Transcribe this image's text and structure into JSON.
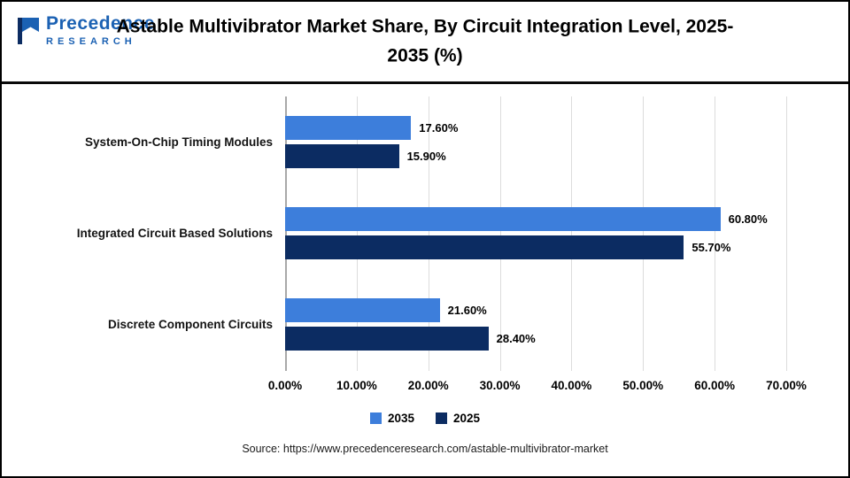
{
  "header": {
    "title": "Astable Multivibrator Market Share, By Circuit Integration Level, 2025-2035 (%)",
    "logo": {
      "line1": "Precedence",
      "line2": "RESEARCH"
    }
  },
  "chart_data": {
    "type": "bar",
    "orientation": "horizontal",
    "title": "Astable Multivibrator Market Share, By Circuit Integration Level, 2025-2035 (%)",
    "categories": [
      "System-On-Chip Timing Modules",
      "Integrated Circuit Based Solutions",
      "Discrete Component Circuits"
    ],
    "series": [
      {
        "name": "2035",
        "color": "#3d7edb",
        "values": [
          17.6,
          60.8,
          21.6
        ],
        "labels": [
          "17.60%",
          "60.80%",
          "21.60%"
        ]
      },
      {
        "name": "2025",
        "color": "#0c2c62",
        "values": [
          15.9,
          55.7,
          28.4
        ],
        "labels": [
          "15.90%",
          "55.70%",
          "28.40%"
        ]
      }
    ],
    "xlim": [
      0,
      70
    ],
    "x_ticks": [
      "0.00%",
      "10.00%",
      "20.00%",
      "30.00%",
      "40.00%",
      "50.00%",
      "60.00%",
      "70.00%"
    ],
    "grid": true,
    "legend_position": "bottom"
  },
  "footer": {
    "source": "Source: https://www.precedenceresearch.com/astable-multivibrator-market"
  }
}
